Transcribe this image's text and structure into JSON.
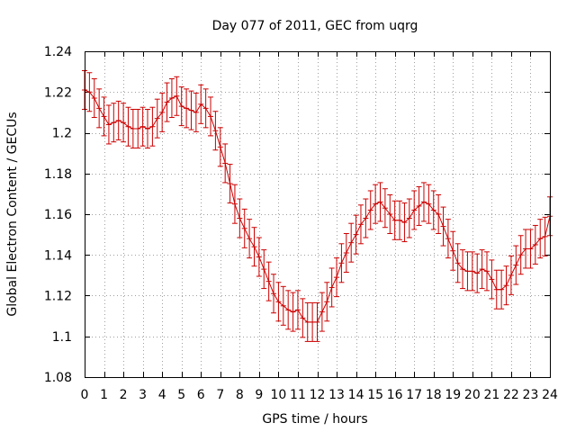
{
  "chart_data": {
    "type": "line",
    "title": "Day 077 of 2011, GEC from uqrg",
    "xlabel": "GPS time / hours",
    "ylabel": "Global Electron Content / GECUs",
    "xlim": [
      0,
      24
    ],
    "ylim": [
      1.08,
      1.24
    ],
    "xticks": [
      0,
      1,
      2,
      3,
      4,
      5,
      6,
      7,
      8,
      9,
      10,
      11,
      12,
      13,
      14,
      15,
      16,
      17,
      18,
      19,
      20,
      21,
      22,
      23,
      24
    ],
    "xtick_labels": [
      "0",
      "1",
      "2",
      "3",
      "4",
      "5",
      "6",
      "7",
      "8",
      "9",
      "10",
      "11",
      "12",
      "13",
      "14",
      "15",
      "16",
      "17",
      "18",
      "19",
      "20",
      "21",
      "22",
      "23",
      "24"
    ],
    "yticks": [
      1.08,
      1.1,
      1.12,
      1.14,
      1.16,
      1.18,
      1.2,
      1.22,
      1.24
    ],
    "ytick_labels": [
      "1.08",
      "1.1",
      "1.12",
      "1.14",
      "1.16",
      "1.18",
      "1.2",
      "1.22",
      "1.24"
    ],
    "grid": true,
    "series": [
      {
        "name": "GEC",
        "color": "#cc0000",
        "error": 0.0095,
        "x": [
          0,
          0.25,
          0.5,
          0.75,
          1,
          1.25,
          1.5,
          1.75,
          2,
          2.25,
          2.5,
          2.75,
          3,
          3.25,
          3.5,
          3.75,
          4,
          4.25,
          4.5,
          4.75,
          5,
          5.25,
          5.5,
          5.75,
          6,
          6.25,
          6.5,
          6.75,
          7,
          7.25,
          7.5,
          7.75,
          8,
          8.25,
          8.5,
          8.75,
          9,
          9.25,
          9.5,
          9.75,
          10,
          10.25,
          10.5,
          10.75,
          11,
          11.25,
          11.5,
          11.75,
          12,
          12.25,
          12.5,
          12.75,
          13,
          13.25,
          13.5,
          13.75,
          14,
          14.25,
          14.5,
          14.75,
          15,
          15.25,
          15.5,
          15.75,
          16,
          16.25,
          16.5,
          16.75,
          17,
          17.25,
          17.5,
          17.75,
          18,
          18.25,
          18.5,
          18.75,
          19,
          19.25,
          19.5,
          19.75,
          20,
          20.25,
          20.5,
          20.75,
          21,
          21.25,
          21.5,
          21.75,
          22,
          22.25,
          22.5,
          22.75,
          23,
          23.25,
          23.5,
          23.75,
          24
        ],
        "values": [
          1.221,
          1.22,
          1.217,
          1.212,
          1.208,
          1.204,
          1.205,
          1.206,
          1.205,
          1.203,
          1.202,
          1.202,
          1.203,
          1.202,
          1.203,
          1.207,
          1.21,
          1.215,
          1.217,
          1.218,
          1.213,
          1.212,
          1.211,
          1.21,
          1.214,
          1.212,
          1.208,
          1.201,
          1.193,
          1.185,
          1.175,
          1.165,
          1.158,
          1.153,
          1.148,
          1.144,
          1.139,
          1.133,
          1.127,
          1.121,
          1.117,
          1.115,
          1.113,
          1.112,
          1.113,
          1.109,
          1.107,
          1.107,
          1.107,
          1.112,
          1.117,
          1.124,
          1.129,
          1.136,
          1.141,
          1.146,
          1.15,
          1.155,
          1.158,
          1.162,
          1.165,
          1.166,
          1.163,
          1.16,
          1.157,
          1.157,
          1.156,
          1.158,
          1.162,
          1.164,
          1.166,
          1.165,
          1.162,
          1.16,
          1.154,
          1.148,
          1.142,
          1.136,
          1.133,
          1.132,
          1.132,
          1.131,
          1.133,
          1.132,
          1.128,
          1.123,
          1.123,
          1.125,
          1.13,
          1.135,
          1.14,
          1.143,
          1.143,
          1.145,
          1.148,
          1.149,
          1.159
        ]
      }
    ]
  }
}
